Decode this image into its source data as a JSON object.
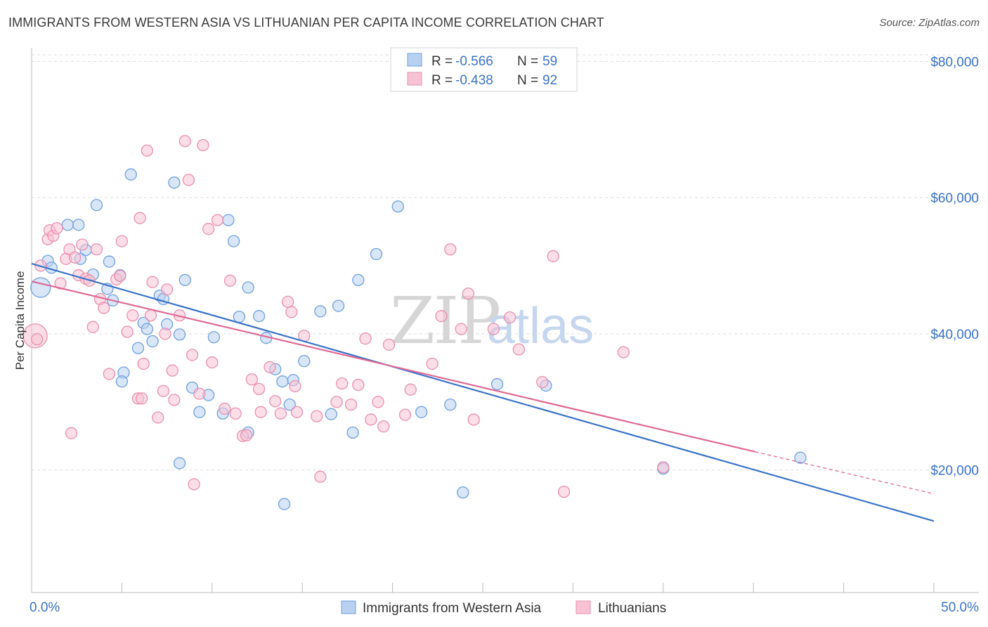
{
  "title": "IMMIGRANTS FROM WESTERN ASIA VS LITHUANIAN PER CAPITA INCOME CORRELATION CHART",
  "source": "Source: ZipAtlas.com",
  "watermark": {
    "zip": "ZIP",
    "atlas": "atlas"
  },
  "legend": {
    "rows": [
      {
        "r_label": "R = ",
        "r_value": "-0.566",
        "n_label": "N = ",
        "n_value": "59",
        "color": "#6fa0de",
        "fill": "#b9d1f1"
      },
      {
        "r_label": "R = ",
        "r_value": "-0.438",
        "n_label": "N = ",
        "n_value": "92",
        "color": "#e98fae",
        "fill": "#f7c3d4"
      }
    ]
  },
  "chart_data": {
    "type": "scatter",
    "xlabel": "",
    "ylabel": "Per Capita Income",
    "xlim": [
      0,
      50
    ],
    "ylim": [
      2000,
      82000
    ],
    "x_tick_labels": [
      {
        "value": 0,
        "label": "0.0%"
      },
      {
        "value": 50,
        "label": "50.0%"
      }
    ],
    "y_ticks": [
      {
        "value": 20000,
        "label": "$20,000"
      },
      {
        "value": 40000,
        "label": "$40,000"
      },
      {
        "value": 60000,
        "label": "$60,000"
      },
      {
        "value": 80000,
        "label": "$80,000"
      }
    ],
    "series": [
      {
        "name": "Immigrants from Western Asia",
        "color": "#3b73c8",
        "point_stroke": "#6fa0de",
        "point_fill": "#b9d1f1",
        "trend": {
          "x0": 0,
          "y0": 50300,
          "x1": 50,
          "y1": 12500,
          "dash_from_x": null
        },
        "points": [
          [
            0.5,
            46800
          ],
          [
            0.9,
            50700
          ],
          [
            1.1,
            49700
          ],
          [
            2.0,
            56000
          ],
          [
            2.6,
            56000
          ],
          [
            2.7,
            51000
          ],
          [
            3.0,
            52300
          ],
          [
            3.4,
            48700
          ],
          [
            3.6,
            58900
          ],
          [
            4.2,
            46600
          ],
          [
            4.3,
            50600
          ],
          [
            4.5,
            44900
          ],
          [
            4.9,
            48600
          ],
          [
            5.1,
            34300
          ],
          [
            5.5,
            63400
          ],
          [
            5.9,
            37900
          ],
          [
            6.2,
            41600
          ],
          [
            6.4,
            40700
          ],
          [
            6.7,
            38900
          ],
          [
            7.1,
            45600
          ],
          [
            7.3,
            45100
          ],
          [
            7.5,
            41400
          ],
          [
            7.9,
            62200
          ],
          [
            8.2,
            39900
          ],
          [
            8.5,
            47900
          ],
          [
            8.9,
            32100
          ],
          [
            9.3,
            28500
          ],
          [
            10.1,
            39500
          ],
          [
            10.6,
            28300
          ],
          [
            10.9,
            56700
          ],
          [
            11.2,
            53600
          ],
          [
            11.5,
            42500
          ],
          [
            12.0,
            46800
          ],
          [
            12.0,
            25500
          ],
          [
            12.6,
            42600
          ],
          [
            13.0,
            39400
          ],
          [
            13.5,
            34800
          ],
          [
            13.9,
            33000
          ],
          [
            14.3,
            29600
          ],
          [
            14.5,
            33200
          ],
          [
            15.1,
            36000
          ],
          [
            16.0,
            43300
          ],
          [
            16.6,
            28200
          ],
          [
            17.0,
            44100
          ],
          [
            17.8,
            25500
          ],
          [
            18.1,
            47900
          ],
          [
            19.1,
            51700
          ],
          [
            20.3,
            58700
          ],
          [
            21.6,
            28500
          ],
          [
            23.2,
            29600
          ],
          [
            23.9,
            16700
          ],
          [
            25.8,
            32600
          ],
          [
            28.5,
            32400
          ],
          [
            35.0,
            20200
          ],
          [
            42.6,
            21800
          ],
          [
            8.2,
            21000
          ],
          [
            14.0,
            15000
          ],
          [
            9.8,
            31000
          ],
          [
            5.0,
            33000
          ]
        ],
        "sizes": {
          "big": [
            [
              0.5,
              46800,
              14
            ]
          ]
        }
      },
      {
        "name": "Lithuanians",
        "color": "#e06a95",
        "point_stroke": "#e98fae",
        "point_fill": "#f7c3d4",
        "trend": {
          "x0": 0,
          "y0": 47700,
          "x1": 50,
          "y1": 16500,
          "dash_from_x": 40.1
        },
        "points": [
          [
            0.2,
            39700
          ],
          [
            0.5,
            50000
          ],
          [
            0.9,
            53900
          ],
          [
            1.0,
            55200
          ],
          [
            1.2,
            54400
          ],
          [
            1.4,
            55500
          ],
          [
            1.6,
            47400
          ],
          [
            1.9,
            51000
          ],
          [
            2.1,
            52400
          ],
          [
            2.4,
            51200
          ],
          [
            2.6,
            48600
          ],
          [
            2.8,
            53100
          ],
          [
            3.0,
            48100
          ],
          [
            3.2,
            47800
          ],
          [
            3.4,
            41000
          ],
          [
            3.6,
            52400
          ],
          [
            3.8,
            45100
          ],
          [
            4.0,
            43800
          ],
          [
            4.3,
            34100
          ],
          [
            4.7,
            48000
          ],
          [
            4.9,
            48500
          ],
          [
            5.0,
            53600
          ],
          [
            5.3,
            40300
          ],
          [
            5.6,
            42700
          ],
          [
            5.9,
            30500
          ],
          [
            6.0,
            57000
          ],
          [
            6.2,
            35600
          ],
          [
            6.4,
            66900
          ],
          [
            6.6,
            42700
          ],
          [
            6.7,
            47600
          ],
          [
            7.0,
            27700
          ],
          [
            7.3,
            31600
          ],
          [
            7.5,
            46500
          ],
          [
            7.8,
            34600
          ],
          [
            7.9,
            30300
          ],
          [
            8.2,
            42700
          ],
          [
            8.5,
            68300
          ],
          [
            8.7,
            62600
          ],
          [
            8.9,
            36900
          ],
          [
            9.3,
            31200
          ],
          [
            9.5,
            67700
          ],
          [
            9.8,
            55400
          ],
          [
            10.0,
            35800
          ],
          [
            10.3,
            56700
          ],
          [
            10.7,
            29000
          ],
          [
            11.0,
            47800
          ],
          [
            11.3,
            28300
          ],
          [
            11.7,
            25000
          ],
          [
            11.9,
            25100
          ],
          [
            12.2,
            33300
          ],
          [
            12.6,
            31900
          ],
          [
            13.2,
            35100
          ],
          [
            13.5,
            30100
          ],
          [
            13.8,
            28300
          ],
          [
            14.2,
            44700
          ],
          [
            14.4,
            43200
          ],
          [
            14.7,
            28500
          ],
          [
            15.1,
            39700
          ],
          [
            15.8,
            27900
          ],
          [
            16.0,
            19000
          ],
          [
            16.9,
            30000
          ],
          [
            17.2,
            32700
          ],
          [
            17.7,
            29600
          ],
          [
            18.1,
            32500
          ],
          [
            18.5,
            39300
          ],
          [
            18.8,
            27400
          ],
          [
            19.2,
            30000
          ],
          [
            19.5,
            26400
          ],
          [
            19.8,
            38400
          ],
          [
            20.7,
            28100
          ],
          [
            21.0,
            31800
          ],
          [
            22.2,
            35600
          ],
          [
            22.7,
            42600
          ],
          [
            23.2,
            52400
          ],
          [
            23.8,
            40700
          ],
          [
            24.2,
            45900
          ],
          [
            24.5,
            27400
          ],
          [
            25.6,
            40700
          ],
          [
            26.5,
            42400
          ],
          [
            27.0,
            37700
          ],
          [
            28.3,
            32900
          ],
          [
            28.9,
            51400
          ],
          [
            29.5,
            16800
          ],
          [
            32.8,
            37300
          ],
          [
            35.0,
            20400
          ],
          [
            0.3,
            39200
          ],
          [
            2.2,
            25400
          ],
          [
            6.1,
            30500
          ],
          [
            9.0,
            17900
          ],
          [
            12.7,
            28500
          ],
          [
            14.6,
            32300
          ],
          [
            7.4,
            40000
          ]
        ],
        "sizes": {
          "big": [
            [
              0.2,
              39700,
              17
            ]
          ]
        }
      }
    ],
    "legend_position": "top-center",
    "bottom_legend": [
      "Immigrants from Western Asia",
      "Lithuanians"
    ]
  }
}
